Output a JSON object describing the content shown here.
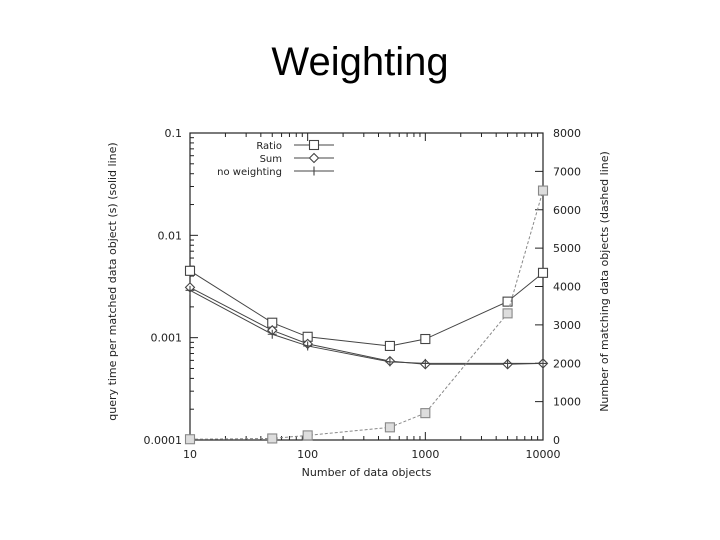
{
  "slide": {
    "title": "Weighting"
  },
  "chart_data": {
    "type": "line",
    "title": "",
    "xlabel": "Number of data objects",
    "ylabel_left": "query time per matched data object (s)  (solid line)",
    "ylabel_right": "Number of matching data objects  (dashed line)",
    "x_scale": "log",
    "y_left_scale": "log",
    "y_right_scale": "linear",
    "xlim": [
      10,
      10000
    ],
    "ylim_left": [
      0.0001,
      0.1
    ],
    "ylim_right": [
      0,
      8000
    ],
    "x_ticks": [
      "10",
      "100",
      "1000",
      "10000"
    ],
    "y_left_ticks": [
      "0.0001",
      "0.001",
      "0.01",
      "0.1"
    ],
    "y_right_ticks": [
      "0",
      "1000",
      "2000",
      "3000",
      "4000",
      "5000",
      "6000",
      "7000",
      "8000"
    ],
    "x": [
      10,
      50,
      100,
      500,
      1000,
      5000,
      10000
    ],
    "legend_position": "top-left",
    "grid": false,
    "series": [
      {
        "name": "Ratio",
        "marker": "square",
        "axis": "left",
        "style": "solid",
        "values": [
          0.0045,
          0.0014,
          0.00102,
          0.00083,
          0.00097,
          0.00225,
          0.0043
        ]
      },
      {
        "name": "Sum",
        "marker": "diamond",
        "axis": "left",
        "style": "solid",
        "values": [
          0.0031,
          0.00118,
          0.00087,
          0.00059,
          0.00055,
          0.00055,
          0.00056
        ]
      },
      {
        "name": "no weighting",
        "marker": "plus",
        "axis": "left",
        "style": "solid",
        "values": [
          0.0029,
          0.00108,
          0.00083,
          0.00058,
          0.00056,
          0.00056,
          0.00056
        ]
      },
      {
        "name": "",
        "marker": "square",
        "axis": "right",
        "style": "dashed",
        "values": [
          20,
          40,
          120,
          330,
          700,
          3300,
          6500
        ]
      }
    ],
    "colors": {
      "line": "#444444",
      "dashed": "#888888",
      "frame": "#222222"
    }
  }
}
